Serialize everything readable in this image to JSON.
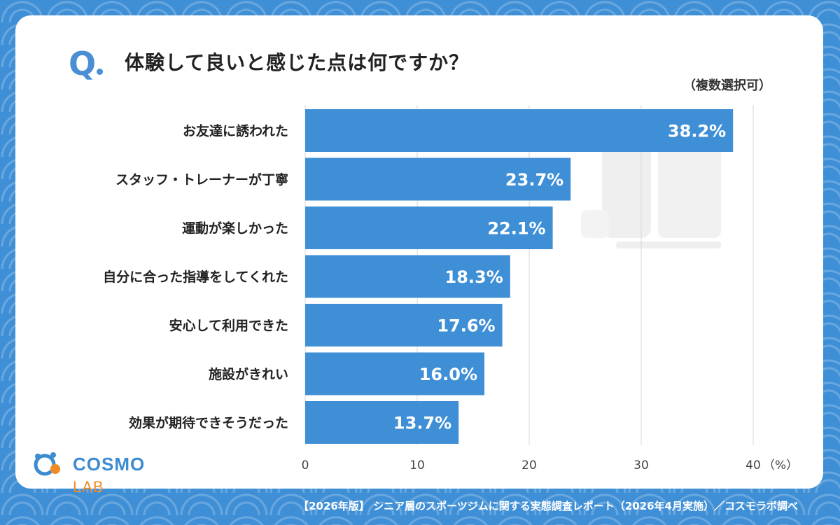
{
  "header": {
    "q_mark": "Q",
    "title": "体験して良いと感じた点は何ですか？",
    "note": "（複数選択可）"
  },
  "chart_data": {
    "type": "bar",
    "orientation": "horizontal",
    "categories": [
      "お友達に誘われた",
      "スタッフ・トレーナーが丁寧",
      "運動が楽しかった",
      "自分に合った指導をしてくれた",
      "安心して利用できた",
      "施設がきれい",
      "効果が期待できそうだった"
    ],
    "values": [
      38.2,
      23.7,
      22.1,
      18.3,
      17.6,
      16.0,
      13.7
    ],
    "value_labels": [
      "38.2%",
      "23.7%",
      "22.1%",
      "18.3%",
      "17.6%",
      "16.0%",
      "13.7%"
    ],
    "xlim": [
      0,
      40
    ],
    "xticks": [
      "0",
      "10",
      "20",
      "30",
      "40"
    ],
    "unit": "（%）",
    "grid": true,
    "bar_color": "#3f8fd6"
  },
  "brand": {
    "logo_main": "COSMO",
    "logo_sub": "LAB"
  },
  "footer": {
    "source": "【2026年版】 シニア層のスポーツジムに関する実態調査レポート（2026年4月実施）／コスモラボ調べ"
  },
  "colors": {
    "accent": "#4a8fd4",
    "background": "#3f8fd6",
    "logo_orange": "#f08a24"
  }
}
